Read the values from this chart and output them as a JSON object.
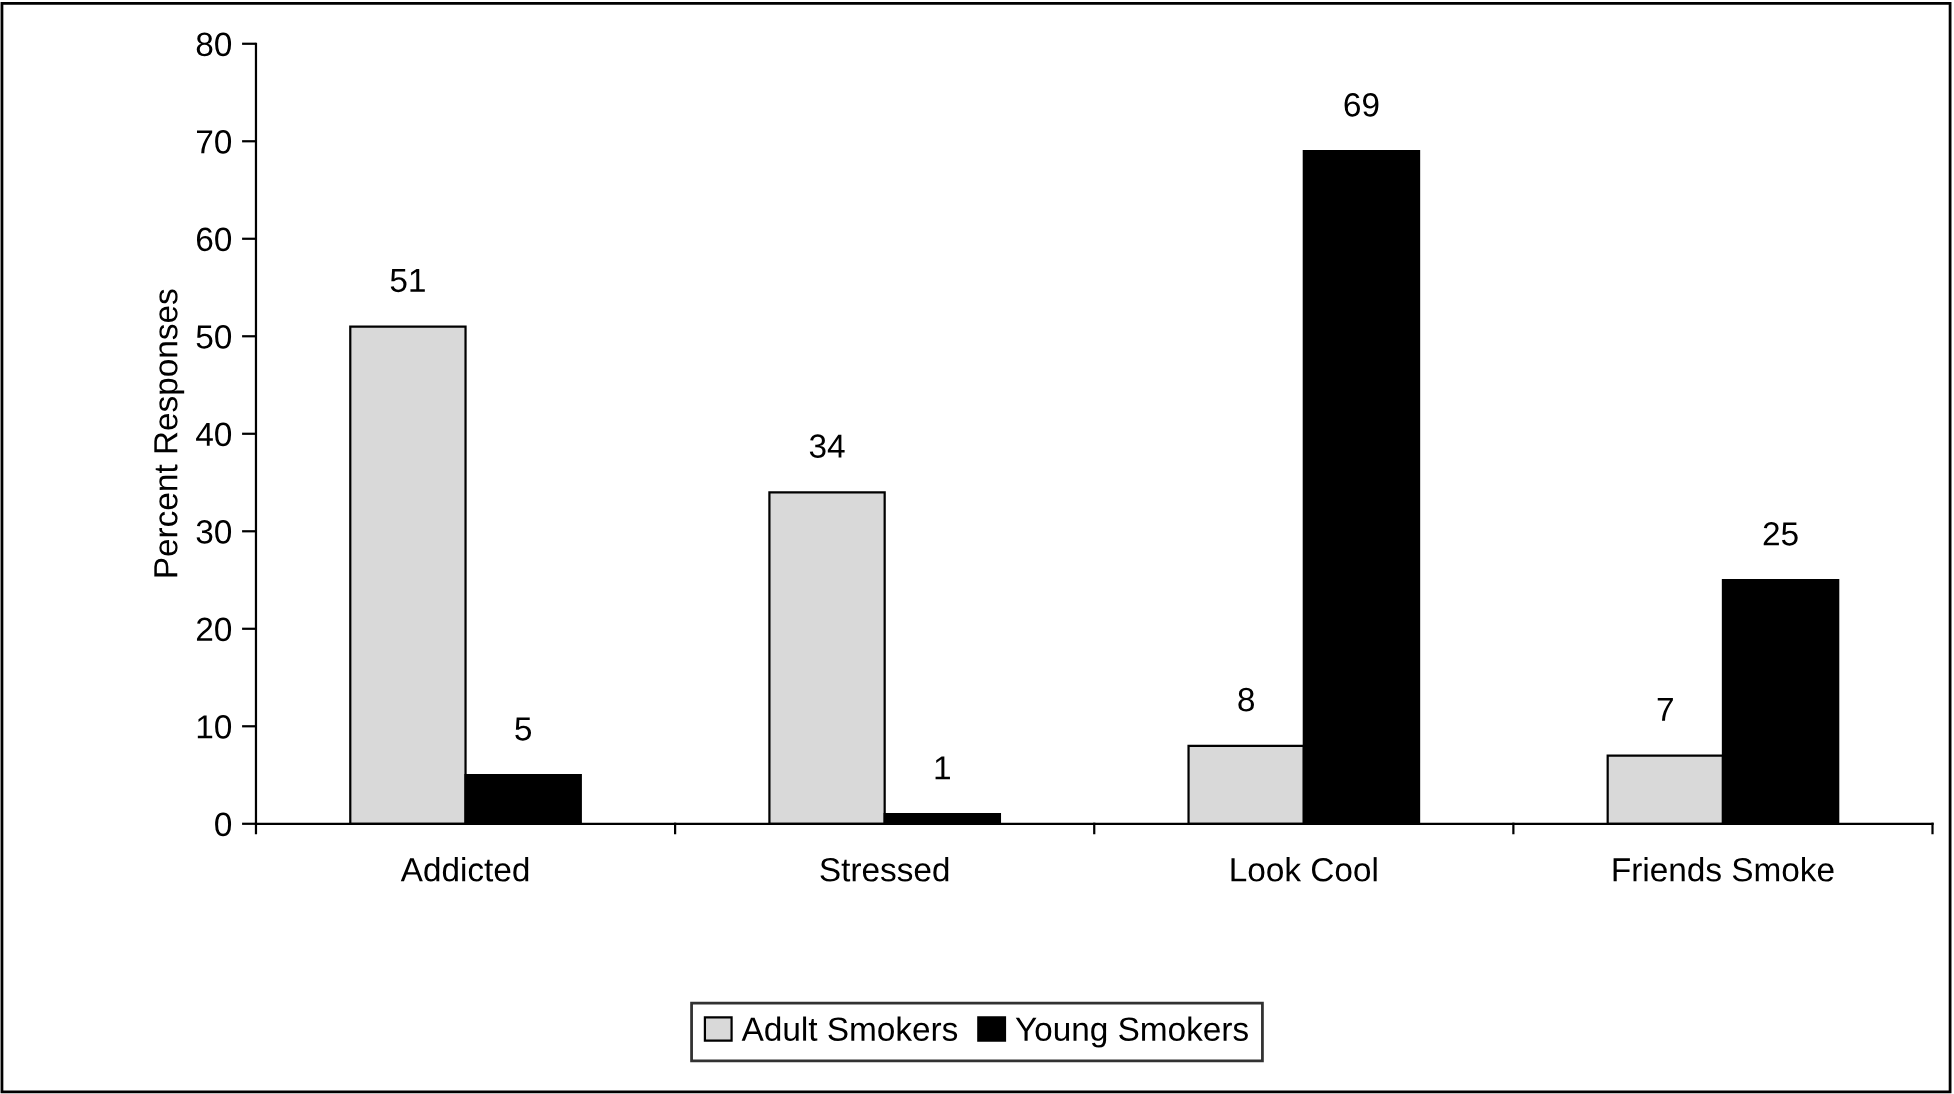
{
  "chart_data": {
    "type": "bar",
    "ylabel": "Percent Responses",
    "categories": [
      "Addicted",
      "Stressed",
      "Look Cool",
      "Friends Smoke"
    ],
    "series": [
      {
        "name": "Adult Smokers",
        "color": "#d9d9d9",
        "values": [
          51,
          34,
          8,
          7
        ]
      },
      {
        "name": "Young Smokers",
        "color": "#000000",
        "values": [
          5,
          1,
          69,
          25
        ]
      }
    ],
    "ylim": [
      0,
      80
    ],
    "yticks": [
      0,
      10,
      20,
      30,
      40,
      50,
      60,
      70,
      80
    ],
    "data_labels": true,
    "grid": false,
    "legend": "bottom"
  }
}
